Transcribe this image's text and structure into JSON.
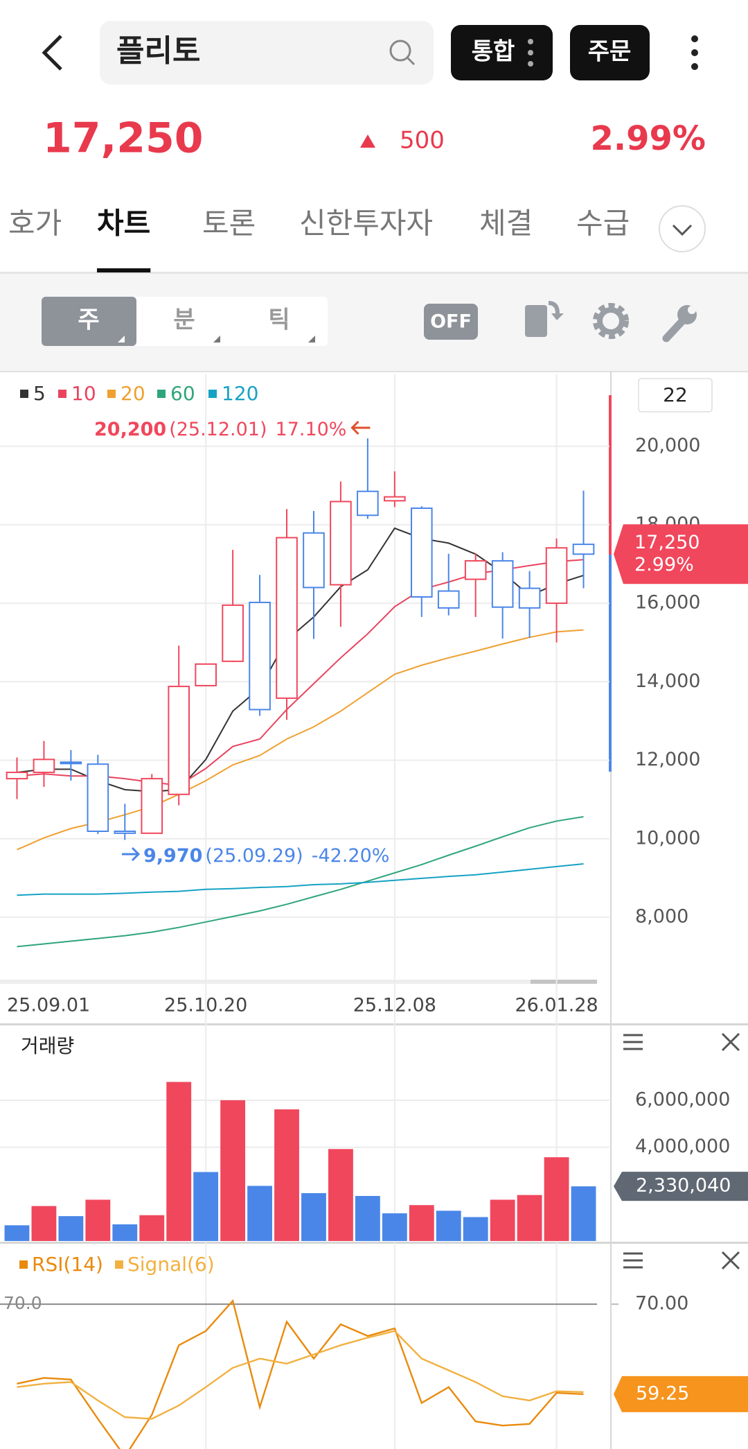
{
  "header": {
    "title": "플리토",
    "buttons": [
      "통합",
      "주문"
    ]
  },
  "quote": {
    "price": "17,250",
    "change": "500",
    "change_rate": "2.99%"
  },
  "tabs": [
    "호가",
    "차트",
    "토론",
    "신한투자자",
    "체결",
    "수급"
  ],
  "active_tab": 1,
  "toolbar": {
    "periods": [
      "주",
      "분",
      "틱"
    ],
    "toggle": "OFF",
    "count": "22"
  },
  "chart_data": [
    {
      "type": "candlestick",
      "categories": [
        "25.09.01",
        null,
        null,
        null,
        null,
        null,
        null,
        "25.10.20",
        null,
        null,
        null,
        null,
        null,
        null,
        "25.12.08",
        null,
        null,
        null,
        null,
        null,
        "26.01.28",
        null
      ],
      "open": [
        11530,
        11690,
        11950,
        11900,
        10190,
        10140,
        11130,
        13900,
        14520,
        16020,
        13580,
        17790,
        16470,
        18850,
        18610,
        18420,
        16310,
        16610,
        17080,
        16380,
        16000,
        17500
      ],
      "high": [
        12070,
        12490,
        12260,
        12140,
        10890,
        11650,
        14920,
        14450,
        17360,
        16720,
        18400,
        18350,
        19100,
        20200,
        19360,
        18470,
        17260,
        17270,
        17300,
        16820,
        17650,
        18870
      ],
      "low": [
        11010,
        11320,
        11480,
        10120,
        9970,
        10140,
        10850,
        13880,
        14500,
        13130,
        13030,
        15090,
        15400,
        18150,
        18450,
        15650,
        15690,
        15650,
        15100,
        15120,
        15000,
        16380
      ],
      "close": [
        11690,
        12020,
        11930,
        10190,
        10140,
        11530,
        13880,
        14450,
        15950,
        13290,
        17670,
        16400,
        18590,
        18240,
        18710,
        16160,
        15880,
        17080,
        15900,
        15880,
        17410,
        17250
      ],
      "up_color": "#f0475c",
      "down_color": "#4a86e8",
      "series": [
        {
          "name": "5",
          "color": "#333333",
          "values": [
            11690,
            11770,
            11770,
            11480,
            11250,
            11200,
            11250,
            12020,
            13250,
            13840,
            15060,
            15650,
            16420,
            16850,
            17910,
            17650,
            17530,
            17250,
            16780,
            16190,
            16490,
            16710
          ]
        },
        {
          "name": "10",
          "color": "#e8445f",
          "values": [
            11600,
            11650,
            11600,
            11600,
            11530,
            11440,
            11360,
            11790,
            12350,
            12540,
            13290,
            13950,
            14610,
            15220,
            15910,
            16350,
            16540,
            16750,
            16850,
            16960,
            17060,
            17110
          ]
        },
        {
          "name": "20",
          "color": "#f0a030",
          "values": [
            9720,
            10020,
            10260,
            10420,
            10610,
            10820,
            11130,
            11480,
            11880,
            12120,
            12540,
            12850,
            13250,
            13720,
            14190,
            14420,
            14610,
            14780,
            14960,
            15130,
            15270,
            15320
          ]
        },
        {
          "name": "60",
          "color": "#2fa57a",
          "values": [
            7250,
            7320,
            7390,
            7460,
            7530,
            7620,
            7740,
            7880,
            8020,
            8160,
            8330,
            8520,
            8710,
            8920,
            9130,
            9340,
            9580,
            9810,
            10050,
            10280,
            10450,
            10560
          ]
        },
        {
          "name": "120",
          "color": "#16a2c4",
          "values": [
            8560,
            8590,
            8590,
            8590,
            8610,
            8640,
            8660,
            8710,
            8730,
            8760,
            8780,
            8830,
            8850,
            8890,
            8940,
            8990,
            9040,
            9080,
            9150,
            9220,
            9290,
            9360
          ]
        }
      ],
      "ylim": [
        6410,
        21830
      ],
      "yticks": [
        {
          "value": 8000,
          "label": "8,000"
        },
        {
          "value": 10000,
          "label": "10,000"
        },
        {
          "value": 12000,
          "label": "12,000"
        },
        {
          "value": 14000,
          "label": "14,000"
        },
        {
          "value": 16000,
          "label": "16,000"
        },
        {
          "value": 18000,
          "label": "18,000"
        },
        {
          "value": 20000,
          "label": "20,000"
        }
      ],
      "grid": true,
      "max_annotation": {
        "value": "20,200",
        "date": "(25.12.01)",
        "change": "17.10%"
      },
      "min_annotation": {
        "value": "9,970",
        "date": "(25.09.29)",
        "change": "-42.20%"
      },
      "current_label": "17,250",
      "current_change": "2.99%"
    },
    {
      "type": "bar",
      "title": "거래량",
      "values": [
        670000,
        1490000,
        1060000,
        1760000,
        710000,
        1100000,
        6780000,
        2940000,
        6000000,
        2350000,
        5610000,
        2040000,
        3920000,
        1920000,
        1180000,
        1530000,
        1290000,
        1020000,
        1760000,
        1960000,
        3570000,
        2330040
      ],
      "colors": [
        "#4a86e8",
        "#f0475c",
        "#4a86e8",
        "#f0475c",
        "#4a86e8",
        "#f0475c",
        "#f0475c",
        "#4a86e8",
        "#f0475c",
        "#4a86e8",
        "#f0475c",
        "#4a86e8",
        "#f0475c",
        "#4a86e8",
        "#4a86e8",
        "#f0475c",
        "#4a86e8",
        "#4a86e8",
        "#f0475c",
        "#f0475c",
        "#f0475c",
        "#4a86e8"
      ],
      "ylim": [
        0,
        9160000
      ],
      "yticks": [
        {
          "value": 4000000,
          "label": "4,000,000"
        },
        {
          "value": 6000000,
          "label": "6,000,000"
        }
      ],
      "grid": true,
      "current_label": "2,330,040"
    },
    {
      "type": "line",
      "series": [
        {
          "name": "RSI(14)",
          "color": "#e98a0c",
          "values": [
            60.5,
            61.2,
            61.0,
            56.3,
            51.8,
            56.8,
            65.1,
            66.8,
            70.4,
            57.7,
            67.9,
            63.5,
            67.6,
            66.2,
            67.1,
            58.2,
            60.1,
            56.0,
            55.5,
            55.7,
            59.4,
            59.25
          ]
        },
        {
          "name": "Signal(6)",
          "color": "#f2b040",
          "values": [
            60.1,
            60.5,
            60.7,
            58.5,
            56.5,
            56.3,
            57.9,
            60.1,
            62.4,
            63.5,
            62.9,
            64.0,
            65.1,
            66.0,
            66.8,
            63.5,
            62.1,
            60.7,
            59.0,
            58.5,
            59.6,
            59.5
          ]
        }
      ],
      "ylim": [
        52.7,
        77.3
      ],
      "yticks": [
        {
          "value": 70,
          "label": "70.00"
        }
      ],
      "reference_line": {
        "value": 70,
        "label": "70.0"
      }
    }
  ]
}
